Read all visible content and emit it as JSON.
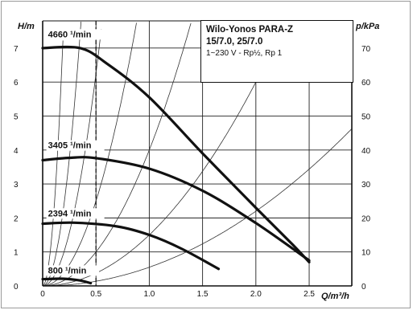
{
  "chart_data": {
    "type": "line",
    "title_lines": [
      "Wilo-Yonos PARA-Z",
      "15/7.0, 25/7.0",
      "1~230 V - Rp½, Rp 1"
    ],
    "xlabel": "Q/m³/h",
    "ylabel": "H/m",
    "y2label": "p/kPa",
    "xlim": [
      0,
      2.9
    ],
    "ylim": [
      0,
      7.8
    ],
    "y2lim": [
      0,
      78
    ],
    "x_ticks": [
      "0",
      "0.5",
      "1.0",
      "1.5",
      "2.0",
      "2.5"
    ],
    "x_tick_values": [
      0,
      0.5,
      1.0,
      1.5,
      2.0,
      2.5
    ],
    "y_ticks": [
      "0",
      "1",
      "2",
      "3",
      "4",
      "5",
      "6",
      "7"
    ],
    "y_tick_values": [
      0,
      1,
      2,
      3,
      4,
      5,
      6,
      7
    ],
    "y2_ticks": [
      "0",
      "10",
      "20",
      "30",
      "40",
      "50",
      "60",
      "70"
    ],
    "y2_tick_values": [
      0,
      10,
      20,
      30,
      40,
      50,
      60,
      70
    ],
    "grid": true,
    "series": [
      {
        "name": "4660 ¹/min",
        "label_x": 0.05,
        "label_y": 7.32,
        "values": [
          [
            0,
            7.0
          ],
          [
            0.35,
            7.0
          ],
          [
            0.6,
            6.55
          ],
          [
            1.0,
            5.55
          ],
          [
            1.5,
            3.9
          ],
          [
            2.0,
            2.3
          ],
          [
            2.35,
            1.2
          ],
          [
            2.5,
            0.7
          ]
        ]
      },
      {
        "name": "3405 ¹/min",
        "label_x": 0.05,
        "label_y": 4.05,
        "values": [
          [
            0,
            3.7
          ],
          [
            0.25,
            3.77
          ],
          [
            0.5,
            3.76
          ],
          [
            1.0,
            3.45
          ],
          [
            1.5,
            2.8
          ],
          [
            2.0,
            1.85
          ],
          [
            2.5,
            0.75
          ]
        ]
      },
      {
        "name": "2394 ¹/min",
        "label_x": 0.05,
        "label_y": 2.05,
        "values": [
          [
            0,
            1.83
          ],
          [
            0.3,
            1.86
          ],
          [
            0.7,
            1.75
          ],
          [
            1.0,
            1.5
          ],
          [
            1.3,
            1.1
          ],
          [
            1.65,
            0.5
          ]
        ]
      },
      {
        "name": "800 ¹/min",
        "label_x": 0.05,
        "label_y": 0.37,
        "values": [
          [
            0,
            0.2
          ],
          [
            0.2,
            0.21
          ],
          [
            0.35,
            0.16
          ],
          [
            0.45,
            0.08
          ]
        ]
      }
    ],
    "reference_line": {
      "x": 0.5
    }
  }
}
